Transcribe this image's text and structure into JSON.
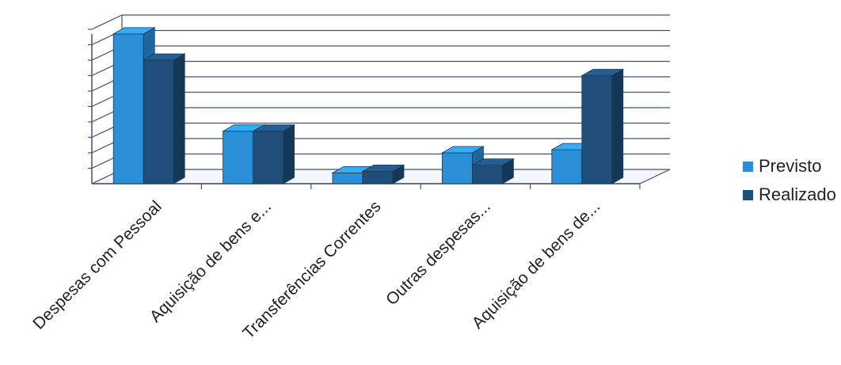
{
  "chart_data": {
    "type": "bar",
    "style": "3d-clustered-column",
    "categories": [
      "Despesas com Pessoal",
      "Aquisição de bens e...",
      "Transferências Correntes",
      "Outras despesas...",
      "Aquisição de bens de..."
    ],
    "series": [
      {
        "name": "Previsto",
        "color": "#2b8fd8",
        "values": [
          9.7,
          3.4,
          0.7,
          2.0,
          2.2
        ]
      },
      {
        "name": "Realizado",
        "color": "#1f4e79",
        "values": [
          8.0,
          3.4,
          0.8,
          1.2,
          7.0
        ]
      }
    ],
    "ylim": [
      0,
      10
    ],
    "gridlines": true,
    "y_tick_labels_shown": false,
    "legend_position": "right"
  }
}
